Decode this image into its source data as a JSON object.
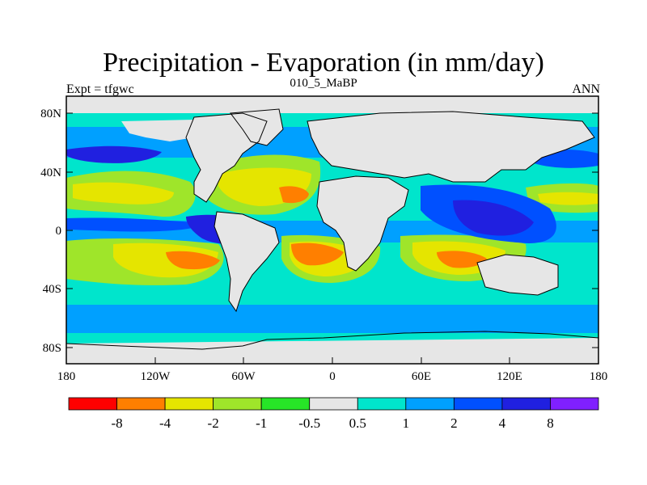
{
  "map": {
    "title": "Precipitation - Evaporation (in mm/day)",
    "subtitle": "010_5_MaBP",
    "left_label": "Expt = tfgwc",
    "right_label": "ANN",
    "lat_ticks": [
      "80N",
      "40N",
      "0",
      "40S",
      "80S"
    ],
    "lon_ticks": [
      "180",
      "120W",
      "60W",
      "0",
      "60E",
      "120E",
      "180"
    ],
    "colorbar": {
      "labels": [
        "-8",
        "-4",
        "-2",
        "-1",
        "-0.5",
        "0.5",
        "1",
        "2",
        "4",
        "8"
      ],
      "colors": [
        "#ff0000",
        "#ff7f00",
        "#e5e500",
        "#9fe52a",
        "#27e527",
        "#e6e6e6",
        "#00e5cc",
        "#00a0ff",
        "#0050ff",
        "#2020e0",
        "#8020ff"
      ]
    },
    "palette": {
      "land": "#e6e6e6",
      "wet1": "#00e5cc",
      "wet2": "#00a0ff",
      "wet3": "#0050ff",
      "wet4": "#2020e0",
      "dry1": "#27e527",
      "dry2": "#9fe52a",
      "dry3": "#e5e500",
      "dry4": "#ff7f00"
    }
  }
}
